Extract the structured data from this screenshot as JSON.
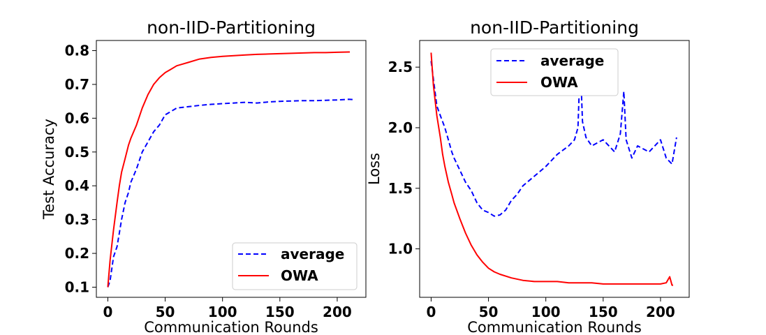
{
  "chart_data": [
    {
      "type": "line",
      "title": "non-IID-Partitioning",
      "xlabel": "Communication Rounds",
      "ylabel": "Test Accuracy",
      "xlim": [
        -10,
        225
      ],
      "ylim": [
        0.07,
        0.83
      ],
      "xticks": [
        0,
        50,
        100,
        150,
        200
      ],
      "yticks": [
        0.1,
        0.2,
        0.3,
        0.4,
        0.5,
        0.6,
        0.7,
        0.8
      ],
      "ytick_labels": [
        "0.1",
        "0.2",
        "0.3",
        "0.4",
        "0.5",
        "0.6",
        "0.7",
        "0.8"
      ],
      "legend_position": "lower-right",
      "series": [
        {
          "name": "average",
          "color": "#0000ff",
          "style": "dashed",
          "x": [
            0,
            2,
            5,
            8,
            10,
            12,
            15,
            18,
            20,
            25,
            30,
            35,
            40,
            45,
            50,
            55,
            60,
            70,
            80,
            90,
            100,
            110,
            120,
            130,
            140,
            150,
            160,
            170,
            180,
            190,
            200,
            210,
            214
          ],
          "y": [
            0.1,
            0.12,
            0.19,
            0.22,
            0.26,
            0.3,
            0.35,
            0.38,
            0.41,
            0.45,
            0.5,
            0.53,
            0.56,
            0.58,
            0.61,
            0.62,
            0.63,
            0.634,
            0.638,
            0.641,
            0.643,
            0.645,
            0.647,
            0.645,
            0.648,
            0.65,
            0.651,
            0.652,
            0.652,
            0.653,
            0.654,
            0.656,
            0.655
          ]
        },
        {
          "name": "OWA",
          "color": "#ff0000",
          "style": "solid",
          "x": [
            0,
            2,
            5,
            8,
            10,
            12,
            15,
            18,
            20,
            25,
            30,
            35,
            40,
            45,
            50,
            55,
            60,
            70,
            80,
            90,
            100,
            110,
            120,
            130,
            140,
            150,
            160,
            170,
            180,
            190,
            200,
            210,
            211
          ],
          "y": [
            0.1,
            0.18,
            0.27,
            0.35,
            0.4,
            0.44,
            0.48,
            0.52,
            0.54,
            0.58,
            0.63,
            0.67,
            0.7,
            0.72,
            0.735,
            0.745,
            0.755,
            0.765,
            0.775,
            0.78,
            0.783,
            0.785,
            0.787,
            0.789,
            0.79,
            0.791,
            0.792,
            0.793,
            0.794,
            0.794,
            0.795,
            0.796,
            0.796
          ]
        }
      ]
    },
    {
      "type": "line",
      "title": "non-IID-Partitioning",
      "xlabel": "Communication Rounds",
      "ylabel": "Loss",
      "xlim": [
        -10,
        225
      ],
      "ylim": [
        0.6,
        2.72
      ],
      "xticks": [
        0,
        50,
        100,
        150,
        200
      ],
      "yticks": [
        1.0,
        1.5,
        2.0,
        2.5
      ],
      "ytick_labels": [
        "1.0",
        "1.5",
        "2.0",
        "2.5"
      ],
      "legend_position": "upper-center",
      "series": [
        {
          "name": "average",
          "color": "#0000ff",
          "style": "dashed",
          "x": [
            0,
            2,
            5,
            8,
            10,
            12,
            15,
            18,
            20,
            25,
            30,
            35,
            40,
            45,
            50,
            55,
            60,
            65,
            70,
            75,
            80,
            90,
            100,
            110,
            120,
            125,
            128,
            130,
            132,
            135,
            140,
            150,
            160,
            165,
            168,
            170,
            175,
            180,
            190,
            200,
            205,
            210,
            214
          ],
          "y": [
            2.55,
            2.4,
            2.18,
            2.1,
            2.05,
            2.0,
            1.9,
            1.8,
            1.75,
            1.65,
            1.55,
            1.48,
            1.38,
            1.32,
            1.3,
            1.27,
            1.28,
            1.32,
            1.4,
            1.45,
            1.52,
            1.6,
            1.68,
            1.78,
            1.85,
            1.9,
            2.0,
            2.55,
            2.05,
            1.92,
            1.85,
            1.9,
            1.8,
            1.95,
            2.3,
            1.9,
            1.75,
            1.85,
            1.8,
            1.9,
            1.75,
            1.7,
            1.92
          ]
        },
        {
          "name": "OWA",
          "color": "#ff0000",
          "style": "solid",
          "x": [
            0,
            2,
            5,
            8,
            10,
            12,
            15,
            18,
            20,
            25,
            30,
            35,
            40,
            45,
            50,
            55,
            60,
            70,
            80,
            90,
            100,
            110,
            120,
            130,
            140,
            150,
            160,
            170,
            180,
            190,
            200,
            205,
            208,
            210,
            211
          ],
          "y": [
            2.62,
            2.35,
            2.1,
            1.92,
            1.78,
            1.68,
            1.55,
            1.45,
            1.38,
            1.25,
            1.13,
            1.03,
            0.95,
            0.89,
            0.84,
            0.81,
            0.79,
            0.76,
            0.74,
            0.73,
            0.73,
            0.73,
            0.72,
            0.72,
            0.72,
            0.71,
            0.71,
            0.71,
            0.71,
            0.71,
            0.71,
            0.72,
            0.77,
            0.7,
            0.7
          ]
        }
      ]
    }
  ]
}
